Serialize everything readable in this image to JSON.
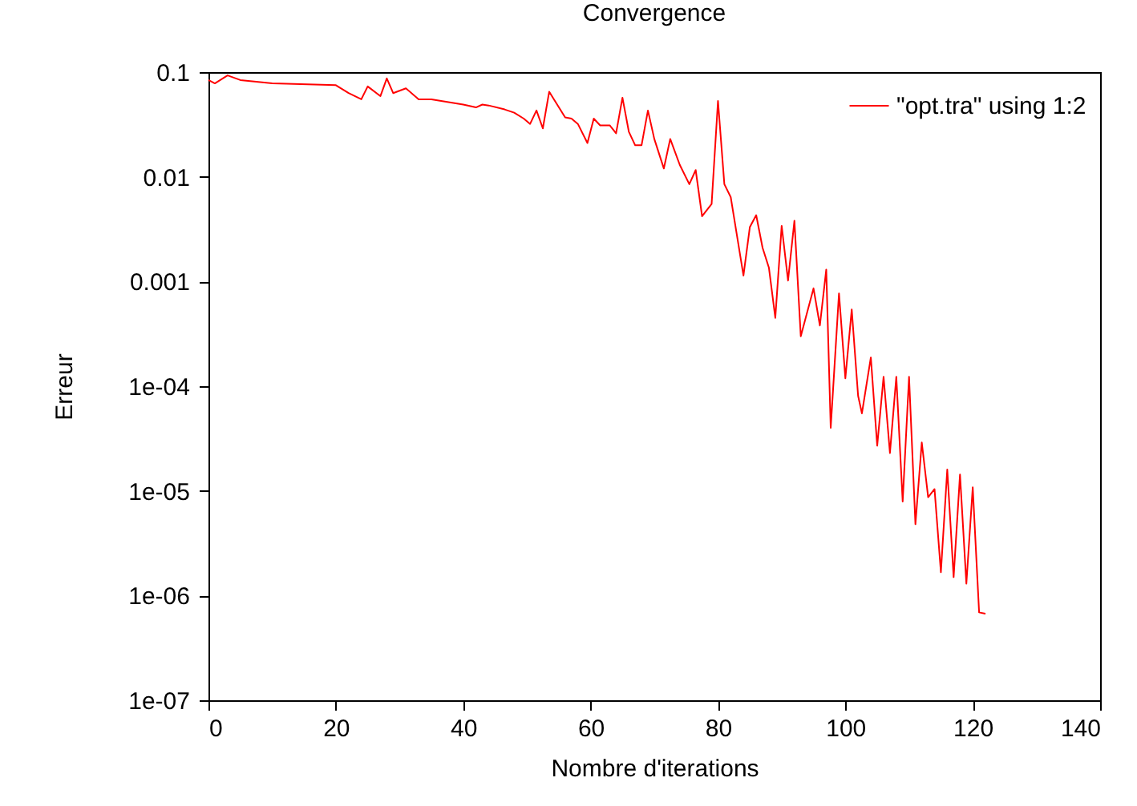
{
  "chart_data": {
    "type": "line",
    "title": "Convergence",
    "xlabel": "Nombre d'iterations",
    "ylabel": "Erreur",
    "x": [
      0,
      1,
      3,
      5,
      10,
      20,
      22,
      24,
      25,
      27,
      28,
      29,
      31,
      33,
      35,
      40,
      42,
      43,
      44,
      46.5,
      48,
      49.5,
      50.5,
      51.5,
      52.5,
      53.5,
      56,
      57,
      58,
      59.5,
      60.5,
      61.5,
      63,
      64,
      65,
      66,
      67,
      68,
      69,
      70,
      71.5,
      72.5,
      74,
      75.5,
      76.5,
      77.5,
      79,
      80,
      81,
      82,
      84,
      85,
      86,
      87,
      88,
      89,
      90,
      91,
      92,
      93,
      95,
      96,
      97,
      97.7,
      99,
      100,
      101,
      102,
      102.6,
      104,
      105,
      106,
      107,
      108,
      109,
      110,
      111,
      112,
      113,
      114,
      115,
      116,
      117,
      118,
      119,
      120,
      121,
      122
    ],
    "series": [
      {
        "name": "\"opt.tra\" using 1:2",
        "color": "#ff0000",
        "values": [
          0.084,
          0.078,
          0.093,
          0.084,
          0.078,
          0.075,
          0.063,
          0.055,
          0.073,
          0.059,
          0.087,
          0.063,
          0.07,
          0.055,
          0.055,
          0.049,
          0.046,
          0.049,
          0.048,
          0.044,
          0.041,
          0.036,
          0.032,
          0.043,
          0.029,
          0.065,
          0.037,
          0.036,
          0.032,
          0.021,
          0.036,
          0.031,
          0.031,
          0.026,
          0.057,
          0.027,
          0.02,
          0.02,
          0.043,
          0.023,
          0.012,
          0.023,
          0.013,
          0.0085,
          0.0116,
          0.0042,
          0.0055,
          0.053,
          0.0085,
          0.0064,
          0.00114,
          0.0033,
          0.0043,
          0.0021,
          0.00135,
          0.00045,
          0.0034,
          0.00102,
          0.0038,
          0.0003,
          0.00086,
          0.00038,
          0.0013,
          4e-05,
          0.00077,
          0.000119,
          0.00054,
          8.1e-05,
          5.5e-05,
          0.000188,
          2.7e-05,
          0.000123,
          2.3e-05,
          0.000123,
          7.9e-06,
          0.000123,
          4.8e-06,
          2.9e-05,
          8.7e-06,
          1.04e-05,
          1.67e-06,
          1.6e-05,
          1.5e-06,
          1.43e-05,
          1.3e-06,
          1.08e-05,
          6.9e-07,
          6.7e-07
        ]
      }
    ],
    "xlim": [
      0,
      140
    ],
    "xticks": [
      0,
      20,
      40,
      60,
      80,
      100,
      120,
      140
    ],
    "ylim": [
      1e-07,
      0.1
    ],
    "yticks": [
      {
        "value": 0.1,
        "label": "0.1"
      },
      {
        "value": 0.01,
        "label": "0.01"
      },
      {
        "value": 0.001,
        "label": "0.001"
      },
      {
        "value": 0.0001,
        "label": "1e-04"
      },
      {
        "value": 1e-05,
        "label": "1e-05"
      },
      {
        "value": 1e-06,
        "label": "1e-06"
      },
      {
        "value": 1e-07,
        "label": "1e-07"
      }
    ],
    "log": "y",
    "grid": false,
    "legend": "top right",
    "marker": "none",
    "line_style": "solid"
  }
}
